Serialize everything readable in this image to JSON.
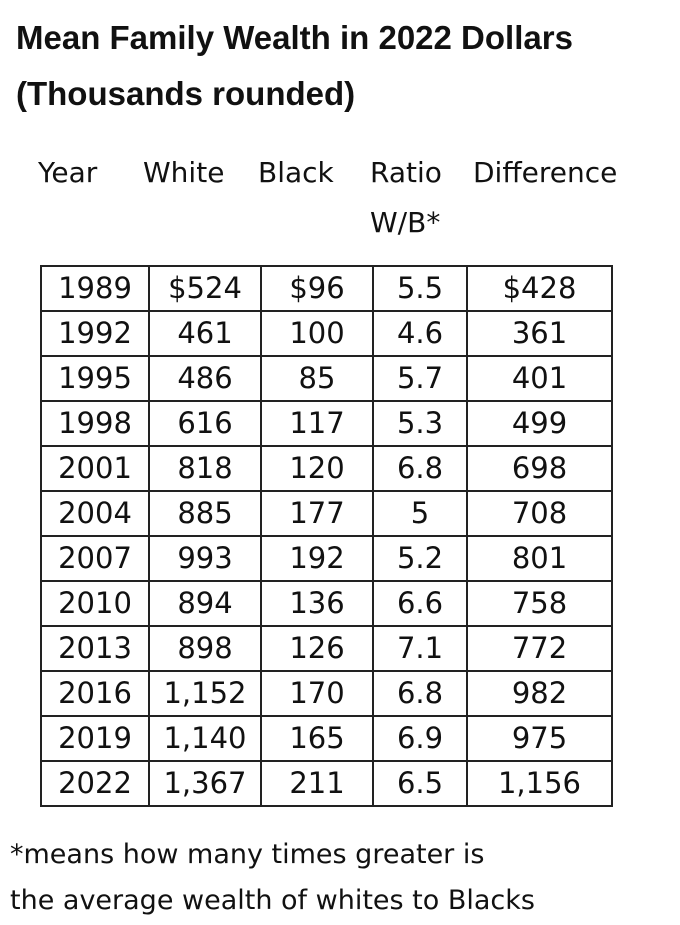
{
  "title_lines": [
    "Mean Family Wealth in 2022 Dollars",
    "(Thousands rounded)"
  ],
  "table": {
    "headers": [
      "Year",
      "White",
      "Black",
      "Ratio W/B*",
      "Difference"
    ],
    "rows": [
      [
        "1989",
        "$524",
        "$96",
        "5.5",
        "$428"
      ],
      [
        "1992",
        "461",
        "100",
        "4.6",
        "361"
      ],
      [
        "1995",
        "486",
        "85",
        "5.7",
        "401"
      ],
      [
        "1998",
        "616",
        "117",
        "5.3",
        "499"
      ],
      [
        "2001",
        "818",
        "120",
        "6.8",
        "698"
      ],
      [
        "2004",
        "885",
        "177",
        "5",
        "708"
      ],
      [
        "2007",
        "993",
        "192",
        "5.2",
        "801"
      ],
      [
        "2010",
        "894",
        "136",
        "6.6",
        "758"
      ],
      [
        "2013",
        "898",
        "126",
        "7.1",
        "772"
      ],
      [
        "2016",
        "1,152",
        "170",
        "6.8",
        "982"
      ],
      [
        "2019",
        "1,140",
        "165",
        "6.9",
        "975"
      ],
      [
        "2022",
        "1,367",
        "211",
        "6.5",
        "1,156"
      ]
    ]
  },
  "footnote_lines": [
    "*means how many times greater is",
    "the average wealth of whites to Blacks"
  ]
}
